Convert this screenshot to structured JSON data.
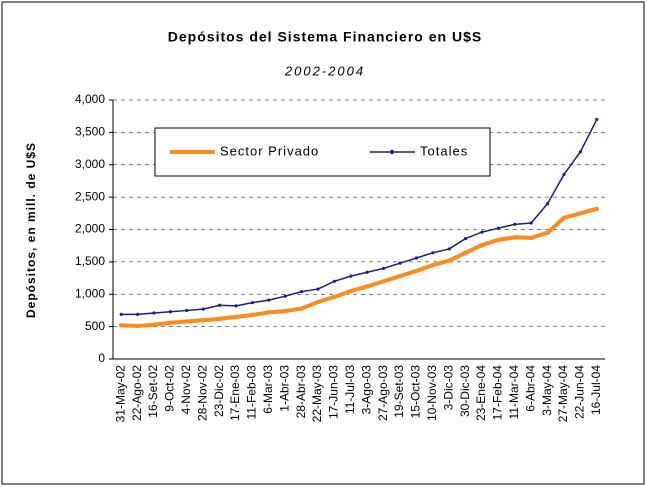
{
  "chart_data": {
    "type": "line",
    "title": "Depósitos del Sistema Financiero en U$S",
    "subtitle": "2002-2004",
    "y_label": "Depósitos, en mill. de U$S",
    "categories": [
      "31-May-02",
      "22-Ago-02",
      "16-Set-02",
      "9-Oct-02",
      "4-Nov-02",
      "28-Nov-02",
      "23-Dic-02",
      "17-Ene-03",
      "11-Feb-03",
      "6-Mar-03",
      "1-Abr-03",
      "28-Abr-03",
      "22-May-03",
      "17-Jun-03",
      "11-Jul-03",
      "3-Ago-03",
      "27-Ago-03",
      "19-Set-03",
      "15-Oct-03",
      "10-Nov-03",
      "3-Dic-03",
      "30-Dic-03",
      "23-Ene-04",
      "17-Feb-04",
      "11-Mar-04",
      "6-Abr-04",
      "3-May-04",
      "27-May-04",
      "22-Jun-04",
      "16-Jul-04"
    ],
    "series": [
      {
        "name": "Sector Privado",
        "color": "#ff8a1c",
        "values": [
          520,
          510,
          530,
          560,
          580,
          600,
          620,
          650,
          680,
          720,
          740,
          780,
          880,
          960,
          1050,
          1120,
          1200,
          1280,
          1360,
          1450,
          1520,
          1640,
          1760,
          1840,
          1880,
          1870,
          1950,
          2180,
          2250,
          2320
        ]
      },
      {
        "name": "Totales",
        "color": "#1c1c8c",
        "values": [
          690,
          690,
          710,
          730,
          750,
          770,
          830,
          820,
          870,
          910,
          970,
          1040,
          1080,
          1200,
          1280,
          1340,
          1400,
          1480,
          1560,
          1640,
          1700,
          1860,
          1960,
          2020,
          2080,
          2100,
          2400,
          2850,
          3200,
          3700
        ]
      }
    ],
    "ylim": [
      0,
      4000
    ],
    "yticks": [
      0,
      {
        "value": 500,
        "label": "500"
      },
      {
        "value": 1000,
        "label": "1,000"
      },
      {
        "value": 1500,
        "label": "1,500"
      },
      {
        "value": 2000,
        "label": "2,000"
      },
      {
        "value": 2500,
        "label": "2,500"
      },
      {
        "value": 3000,
        "label": "3,000"
      },
      {
        "value": 3500,
        "label": "3,500"
      },
      {
        "value": 4000,
        "label": "4,000"
      }
    ],
    "grid": true
  }
}
